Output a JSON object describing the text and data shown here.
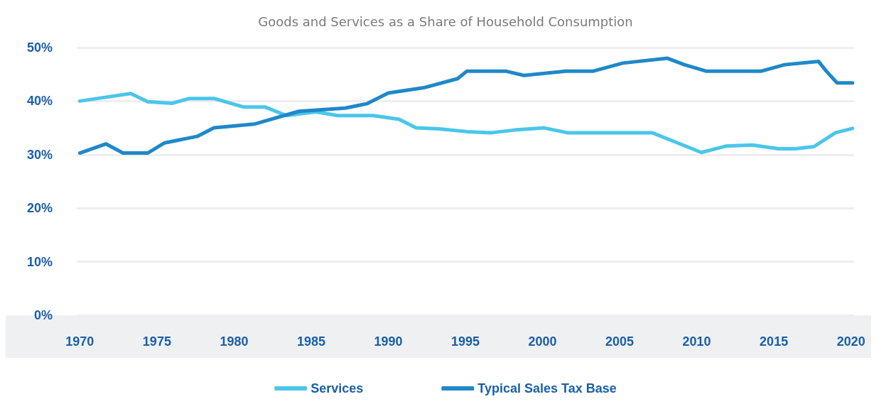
{
  "chart_data": {
    "type": "line",
    "title": "Goods and Services as a Share of Household Consumption",
    "xlim": [
      1969.8,
      2020.2
    ],
    "xticks": [
      1970,
      1975,
      1980,
      1985,
      1990,
      1995,
      2000,
      2005,
      2010,
      2015,
      2020
    ],
    "ylim": [
      0,
      50
    ],
    "yticks": [
      {
        "value": 0,
        "label": "0%"
      },
      {
        "value": 10,
        "label": "10%"
      },
      {
        "value": 20,
        "label": "20%"
      },
      {
        "value": 30,
        "label": "30%"
      },
      {
        "value": 40,
        "label": "40%"
      },
      {
        "value": 50,
        "label": "50%"
      }
    ],
    "grid": "y",
    "legend": "bottom",
    "marker": "none",
    "line_style": "solid",
    "series": [
      {
        "name": "Services",
        "color": "#4ac6ea",
        "x": [
          1970.0,
          1971.4,
          1973.3,
          1974.4,
          1976.0,
          1977.1,
          1978.7,
          1980.6,
          1982.0,
          1983.4,
          1985.3,
          1986.7,
          1989.0,
          1990.7,
          1991.8,
          1993.3,
          1995.1,
          1996.7,
          1998.2,
          2000.1,
          2001.6,
          2007.1,
          2009.1,
          2010.3,
          2011.9,
          2013.6,
          2015.3,
          2016.4,
          2017.6,
          2019.0,
          2020.1
        ],
        "values": [
          40.0,
          40.6,
          41.4,
          39.9,
          39.6,
          40.5,
          40.5,
          38.9,
          38.9,
          37.3,
          38.0,
          37.3,
          37.3,
          36.6,
          35.0,
          34.8,
          34.3,
          34.1,
          34.6,
          35.0,
          34.1,
          34.1,
          31.8,
          30.4,
          31.6,
          31.8,
          31.1,
          31.1,
          31.5,
          34.1,
          34.9
        ]
      },
      {
        "name": "Typical Sales Tax Base",
        "color": "#1f88c9",
        "x": [
          1970.0,
          1971.7,
          1972.8,
          1974.4,
          1975.5,
          1977.6,
          1978.7,
          1981.3,
          1984.2,
          1987.2,
          1988.6,
          1990.0,
          1992.3,
          1994.5,
          1995.1,
          1997.6,
          1998.8,
          2001.5,
          2003.3,
          2005.2,
          2008.1,
          2009.2,
          2010.6,
          2014.2,
          2015.7,
          2017.9,
          2018.4,
          2019.1,
          2020.1
        ],
        "values": [
          30.3,
          32.0,
          30.3,
          30.3,
          32.2,
          33.4,
          35.0,
          35.7,
          38.1,
          38.7,
          39.5,
          41.5,
          42.5,
          44.2,
          45.6,
          45.6,
          44.8,
          45.6,
          45.6,
          47.1,
          48.0,
          46.8,
          45.6,
          45.6,
          46.8,
          47.4,
          45.6,
          43.4,
          43.4
        ]
      }
    ]
  }
}
